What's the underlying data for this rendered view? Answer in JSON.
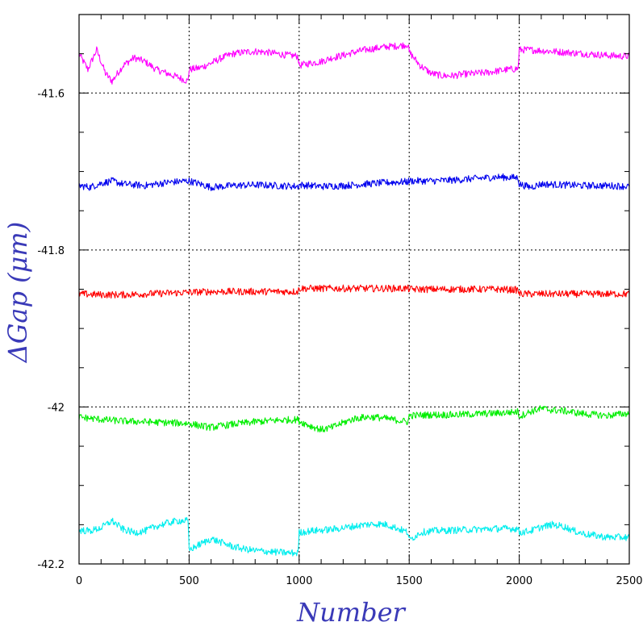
{
  "chart_data": {
    "type": "line",
    "title": "",
    "xlabel": "Number",
    "ylabel": "ΔGap (μm)",
    "xlim": [
      0,
      2500
    ],
    "ylim": [
      -42.2,
      -41.5
    ],
    "x_ticks": [
      0,
      500,
      1000,
      1500,
      2000,
      2500
    ],
    "x_tick_labels": [
      "0",
      "500",
      "1000",
      "1500",
      "2000",
      "2500"
    ],
    "y_ticks": [
      -42.2,
      -42.0,
      -41.8,
      -41.6
    ],
    "y_tick_labels": [
      "-42.2",
      "-42",
      "-41.8",
      "-41.6"
    ],
    "grid": true,
    "legend": "none",
    "series": [
      {
        "color": "#ff00ff",
        "x": [
          0,
          40,
          80,
          120,
          150,
          200,
          250,
          300,
          350,
          400,
          450,
          495,
          500,
          550,
          600,
          650,
          700,
          750,
          800,
          850,
          900,
          950,
          995,
          1000,
          1050,
          1100,
          1150,
          1200,
          1250,
          1300,
          1350,
          1400,
          1450,
          1495,
          1500,
          1550,
          1600,
          1650,
          1700,
          1750,
          1800,
          1850,
          1900,
          1950,
          1995,
          2000,
          2050,
          2100,
          2150,
          2200,
          2250,
          2300,
          2350,
          2400,
          2450,
          2500
        ],
        "values": [
          -41.55,
          -41.57,
          -41.545,
          -41.575,
          -41.585,
          -41.565,
          -41.555,
          -41.56,
          -41.57,
          -41.575,
          -41.58,
          -41.585,
          -41.57,
          -41.568,
          -41.562,
          -41.555,
          -41.55,
          -41.548,
          -41.547,
          -41.548,
          -41.55,
          -41.552,
          -41.553,
          -41.565,
          -41.562,
          -41.56,
          -41.555,
          -41.552,
          -41.548,
          -41.545,
          -41.543,
          -41.541,
          -41.54,
          -41.538,
          -41.548,
          -41.565,
          -41.575,
          -41.578,
          -41.578,
          -41.576,
          -41.575,
          -41.574,
          -41.572,
          -41.57,
          -41.569,
          -41.545,
          -41.545,
          -41.546,
          -41.547,
          -41.548,
          -41.549,
          -41.55,
          -41.551,
          -41.552,
          -41.553,
          -41.553
        ]
      },
      {
        "color": "#0000ee",
        "x": [
          0,
          50,
          100,
          150,
          200,
          300,
          400,
          495,
          500,
          550,
          600,
          700,
          800,
          900,
          995,
          1000,
          1100,
          1200,
          1300,
          1400,
          1495,
          1500,
          1600,
          1700,
          1800,
          1900,
          1995,
          2000,
          2050,
          2100,
          2200,
          2300,
          2400,
          2500
        ],
        "values": [
          -41.718,
          -41.72,
          -41.715,
          -41.712,
          -41.716,
          -41.718,
          -41.714,
          -41.712,
          -41.712,
          -41.716,
          -41.72,
          -41.718,
          -41.717,
          -41.718,
          -41.719,
          -41.717,
          -41.719,
          -41.718,
          -41.716,
          -41.714,
          -41.713,
          -41.712,
          -41.712,
          -41.711,
          -41.709,
          -41.707,
          -41.708,
          -41.716,
          -41.72,
          -41.716,
          -41.717,
          -41.718,
          -41.718,
          -41.719
        ]
      },
      {
        "color": "#ff0000",
        "x": [
          0,
          100,
          200,
          300,
          400,
          495,
          500,
          600,
          700,
          800,
          900,
          995,
          1000,
          1100,
          1200,
          1300,
          1400,
          1495,
          1500,
          1600,
          1700,
          1800,
          1900,
          1995,
          2000,
          2100,
          2200,
          2300,
          2400,
          2500
        ],
        "values": [
          -41.856,
          -41.857,
          -41.857,
          -41.856,
          -41.855,
          -41.854,
          -41.854,
          -41.853,
          -41.853,
          -41.853,
          -41.853,
          -41.853,
          -41.849,
          -41.849,
          -41.849,
          -41.849,
          -41.849,
          -41.849,
          -41.85,
          -41.85,
          -41.85,
          -41.85,
          -41.85,
          -41.851,
          -41.856,
          -41.856,
          -41.856,
          -41.856,
          -41.856,
          -41.856
        ]
      },
      {
        "color": "#00ee00",
        "x": [
          0,
          100,
          200,
          300,
          400,
          495,
          500,
          550,
          600,
          700,
          800,
          900,
          995,
          1000,
          1050,
          1100,
          1150,
          1200,
          1250,
          1300,
          1350,
          1400,
          1450,
          1495,
          1500,
          1600,
          1700,
          1800,
          1900,
          1995,
          2000,
          2050,
          2100,
          2150,
          2200,
          2300,
          2400,
          2500
        ],
        "values": [
          -42.013,
          -42.016,
          -42.018,
          -42.019,
          -42.02,
          -42.021,
          -42.021,
          -42.024,
          -42.026,
          -42.022,
          -42.019,
          -42.017,
          -42.016,
          -42.018,
          -42.024,
          -42.029,
          -42.026,
          -42.02,
          -42.015,
          -42.013,
          -42.013,
          -42.015,
          -42.017,
          -42.019,
          -42.011,
          -42.01,
          -42.01,
          -42.009,
          -42.008,
          -42.006,
          -42.012,
          -42.006,
          -42.002,
          -42.004,
          -42.005,
          -42.009,
          -42.011,
          -42.008
        ]
      },
      {
        "color": "#00eeee",
        "x": [
          0,
          50,
          100,
          150,
          200,
          250,
          300,
          350,
          400,
          450,
          495,
          500,
          550,
          600,
          650,
          700,
          750,
          800,
          850,
          900,
          950,
          995,
          1000,
          1050,
          1100,
          1150,
          1200,
          1250,
          1300,
          1350,
          1400,
          1450,
          1495,
          1500,
          1550,
          1600,
          1700,
          1800,
          1900,
          1995,
          2000,
          2050,
          2100,
          2150,
          2200,
          2250,
          2300,
          2350,
          2400,
          2450,
          2500
        ],
        "values": [
          -42.157,
          -42.158,
          -42.154,
          -42.145,
          -42.156,
          -42.16,
          -42.158,
          -42.152,
          -42.148,
          -42.145,
          -42.145,
          -42.182,
          -42.175,
          -42.168,
          -42.173,
          -42.178,
          -42.181,
          -42.183,
          -42.184,
          -42.185,
          -42.186,
          -42.186,
          -42.16,
          -42.158,
          -42.157,
          -42.156,
          -42.154,
          -42.152,
          -42.15,
          -42.149,
          -42.15,
          -42.155,
          -42.16,
          -42.17,
          -42.16,
          -42.158,
          -42.157,
          -42.156,
          -42.155,
          -42.155,
          -42.16,
          -42.158,
          -42.153,
          -42.15,
          -42.152,
          -42.158,
          -42.162,
          -42.164,
          -42.166,
          -42.166,
          -42.166
        ]
      }
    ]
  }
}
